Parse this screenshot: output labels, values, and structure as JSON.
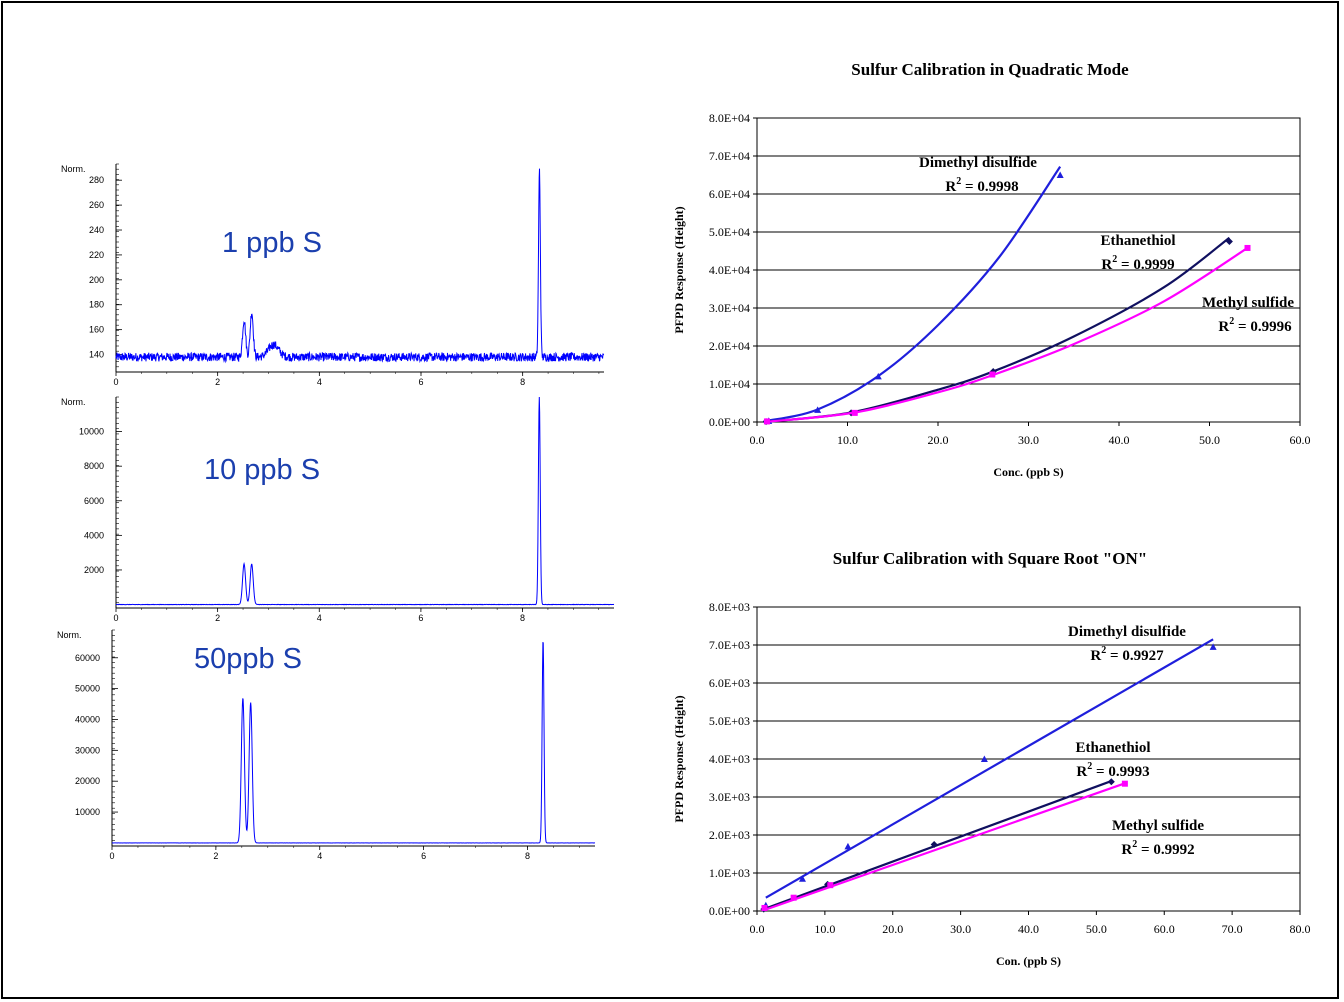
{
  "chromatograms": [
    {
      "label": "1 ppb S",
      "ylabel": "Norm.",
      "yticks": [
        140,
        160,
        180,
        200,
        220,
        240,
        260,
        280
      ],
      "xticks": [
        0,
        2,
        4,
        6,
        8
      ],
      "ylim": [
        126,
        293
      ],
      "xlim": [
        0,
        9.6
      ],
      "baseline": 138,
      "noise": 3.5,
      "peaks": [
        {
          "x": 2.52,
          "h": 30,
          "w": 0.03
        },
        {
          "x": 2.67,
          "h": 36,
          "w": 0.03
        },
        {
          "x": 3.1,
          "h": 10,
          "w": 0.1
        },
        {
          "x": 8.33,
          "h": 150,
          "w": 0.018
        }
      ]
    },
    {
      "label": "10 ppb S",
      "ylabel": "Norm.",
      "yticks": [
        2000,
        4000,
        6000,
        8000,
        10000
      ],
      "xticks": [
        0,
        2,
        4,
        6,
        8
      ],
      "ylim": [
        -200,
        12000
      ],
      "xlim": [
        0,
        9.8
      ],
      "baseline": 0,
      "noise": 10,
      "peaks": [
        {
          "x": 2.52,
          "h": 2350,
          "w": 0.03
        },
        {
          "x": 2.67,
          "h": 2350,
          "w": 0.03
        },
        {
          "x": 8.33,
          "h": 12000,
          "w": 0.018
        }
      ]
    },
    {
      "label": "50ppb S",
      "ylabel": "Norm.",
      "yticks": [
        10000,
        20000,
        30000,
        40000,
        50000,
        60000
      ],
      "xticks": [
        0,
        2,
        4,
        6,
        8
      ],
      "ylim": [
        -1000,
        69000
      ],
      "xlim": [
        0,
        9.3
      ],
      "baseline": 0,
      "noise": 20,
      "peaks": [
        {
          "x": 2.52,
          "h": 47000,
          "w": 0.03
        },
        {
          "x": 2.67,
          "h": 45500,
          "w": 0.03
        },
        {
          "x": 8.3,
          "h": 66000,
          "w": 0.018
        }
      ]
    }
  ],
  "chart_data": [
    {
      "type": "scatter",
      "title": "Sulfur Calibration  in Quadratic Mode",
      "xlabel": "Conc. (ppb S)",
      "ylabel": "PFPD Response (Height)",
      "xlim": [
        0,
        60
      ],
      "ylim": [
        0,
        80000
      ],
      "xticks": [
        "0.0",
        "10.0",
        "20.0",
        "30.0",
        "40.0",
        "50.0",
        "60.0"
      ],
      "yticks": [
        "0.0E+00",
        "1.0E+04",
        "2.0E+04",
        "3.0E+04",
        "4.0E+04",
        "5.0E+04",
        "6.0E+04",
        "7.0E+04",
        "8.0E+04"
      ],
      "grid": "horizontal",
      "series": [
        {
          "name": "Dimethyl disulfide",
          "r2": "R",
          "r2_value": "= 0.9998",
          "color": "#1f1fdc",
          "marker": "triangle",
          "points": [
            [
              1.3,
              300
            ],
            [
              6.7,
              3200
            ],
            [
              13.4,
              12000
            ],
            [
              33.5,
              65000
            ]
          ],
          "fit": [
            [
              1.0,
              250
            ],
            [
              6.7,
              3300
            ],
            [
              13.4,
              12100
            ],
            [
              20.0,
              25500
            ],
            [
              26.8,
              43500
            ],
            [
              33.5,
              67200
            ]
          ]
        },
        {
          "name": "Ethanethiol",
          "r2": "R",
          "r2_value": "= 0.9999",
          "color": "#101060",
          "marker": "diamond",
          "points": [
            [
              1.0,
              100
            ],
            [
              10.4,
              2400
            ],
            [
              26.1,
              13300
            ],
            [
              52.2,
              47500
            ]
          ],
          "fit": [
            [
              1.0,
              50
            ],
            [
              10.4,
              2500
            ],
            [
              20.0,
              8500
            ],
            [
              26.1,
              13300
            ],
            [
              35.0,
              22500
            ],
            [
              45.0,
              35500
            ],
            [
              52.2,
              48500
            ]
          ]
        },
        {
          "name": "Methyl sulfide",
          "r2": "R",
          "r2_value": "= 0.9996",
          "color": "#ff00ff",
          "marker": "square",
          "points": [
            [
              1.1,
              150
            ],
            [
              10.8,
              2400
            ],
            [
              26.0,
              12500
            ],
            [
              54.2,
              45800
            ]
          ],
          "fit": [
            [
              1.0,
              50
            ],
            [
              10.8,
              2500
            ],
            [
              20.0,
              7800
            ],
            [
              26.0,
              12300
            ],
            [
              35.0,
              20500
            ],
            [
              45.0,
              31800
            ],
            [
              54.2,
              45800
            ]
          ]
        }
      ]
    },
    {
      "type": "scatter",
      "title": "Sulfur Calibration with Square Root \"ON\"",
      "xlabel": "Con. (ppb S)",
      "ylabel": "PFPD Response (Height)",
      "xlim": [
        0,
        80
      ],
      "ylim": [
        0,
        8000
      ],
      "xticks": [
        "0.0",
        "10.0",
        "20.0",
        "30.0",
        "40.0",
        "50.0",
        "60.0",
        "70.0",
        "80.0"
      ],
      "yticks": [
        "0.0E+00",
        "1.0E+03",
        "2.0E+03",
        "3.0E+03",
        "4.0E+03",
        "5.0E+03",
        "6.0E+03",
        "7.0E+03",
        "8.0E+03"
      ],
      "grid": "horizontal",
      "series": [
        {
          "name": "Dimethyl disulfide",
          "r2": "R",
          "r2_value": "= 0.9927",
          "color": "#1f1fdc",
          "marker": "triangle",
          "points": [
            [
              1.3,
              150
            ],
            [
              6.7,
              850
            ],
            [
              13.4,
              1700
            ],
            [
              33.5,
              4000
            ],
            [
              67.2,
              6950
            ]
          ],
          "fit": [
            [
              1.3,
              350
            ],
            [
              67.2,
              7150
            ]
          ]
        },
        {
          "name": "Ethanethiol",
          "r2": "R",
          "r2_value": "= 0.9993",
          "color": "#101060",
          "marker": "diamond",
          "points": [
            [
              1.0,
              50
            ],
            [
              10.4,
              700
            ],
            [
              26.1,
              1750
            ],
            [
              52.2,
              3400
            ]
          ],
          "fit": [
            [
              1.0,
              50
            ],
            [
              52.2,
              3420
            ]
          ]
        },
        {
          "name": "Methyl sulfide",
          "r2": "R",
          "r2_value": "= 0.9992",
          "color": "#ff00ff",
          "marker": "square",
          "points": [
            [
              1.1,
              80
            ],
            [
              5.4,
              350
            ],
            [
              10.8,
              680
            ],
            [
              54.2,
              3350
            ]
          ],
          "fit": [
            [
              1.0,
              20
            ],
            [
              54.2,
              3360
            ]
          ]
        }
      ]
    }
  ]
}
